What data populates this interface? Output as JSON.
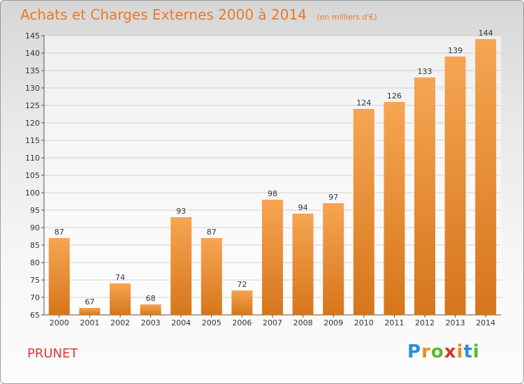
{
  "header": {
    "title": "Achats et Charges Externes 2000 à 2014",
    "subtitle": "(en milliers d'€)"
  },
  "footer": {
    "commune": "PRUNET",
    "brand_letters": [
      "P",
      "r",
      "o",
      "x",
      "i",
      "t",
      "i"
    ],
    "brand_colors": [
      "#2a8fd8",
      "#f08a1c",
      "#5cb82e",
      "#e0312b",
      "#f08a1c",
      "#2a8fd8",
      "#5cb82e"
    ]
  },
  "colors": {
    "bar_light": "#f6a552",
    "bar_dark": "#d6761c",
    "title": "#e87a2a",
    "grid": "#d0d0d0"
  },
  "chart_data": {
    "type": "bar",
    "title": "Achats et Charges Externes 2000 à 2014",
    "subtitle": "(en milliers d'€)",
    "xlabel": "",
    "ylabel": "",
    "categories": [
      "2000",
      "2001",
      "2002",
      "2003",
      "2004",
      "2005",
      "2006",
      "2007",
      "2008",
      "2009",
      "2010",
      "2011",
      "2012",
      "2013",
      "2014"
    ],
    "values": [
      87,
      67,
      74,
      68,
      93,
      87,
      72,
      98,
      94,
      97,
      124,
      126,
      133,
      139,
      144
    ],
    "ylim": [
      65,
      145
    ],
    "yticks": [
      65,
      70,
      75,
      80,
      85,
      90,
      95,
      100,
      105,
      110,
      115,
      120,
      125,
      130,
      135,
      140,
      145
    ],
    "grid": true
  }
}
